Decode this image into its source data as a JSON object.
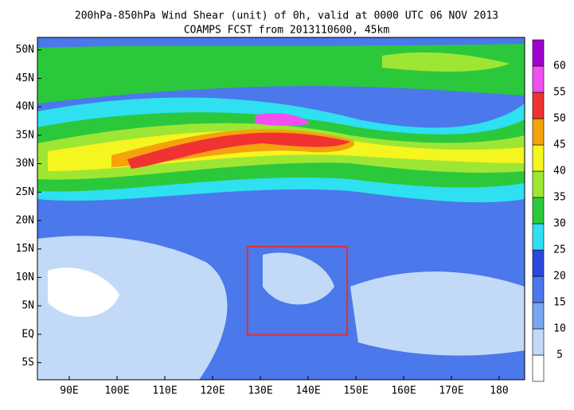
{
  "chart_data": {
    "type": "map",
    "title": "200hPa-850hPa Wind Shear (unit) of 0h, valid at 0000 UTC 06 NOV 2013",
    "subtitle": "COAMPS FCST from 2013110600, 45km",
    "xlim": [
      83.33,
      185.33
    ],
    "ylim": [
      -8,
      52.2
    ],
    "xticks": [
      {
        "value": 90,
        "label": "90E"
      },
      {
        "value": 100,
        "label": "100E"
      },
      {
        "value": 110,
        "label": "110E"
      },
      {
        "value": 120,
        "label": "120E"
      },
      {
        "value": 130,
        "label": "130E"
      },
      {
        "value": 140,
        "label": "140E"
      },
      {
        "value": 150,
        "label": "150E"
      },
      {
        "value": 160,
        "label": "160E"
      },
      {
        "value": 170,
        "label": "170E"
      },
      {
        "value": 180,
        "label": "180"
      }
    ],
    "yticks": [
      {
        "value": -5,
        "label": "5S"
      },
      {
        "value": 0,
        "label": "EQ"
      },
      {
        "value": 5,
        "label": "5N"
      },
      {
        "value": 10,
        "label": "10N"
      },
      {
        "value": 15,
        "label": "15N"
      },
      {
        "value": 20,
        "label": "20N"
      },
      {
        "value": 25,
        "label": "25N"
      },
      {
        "value": 30,
        "label": "30N"
      },
      {
        "value": 35,
        "label": "35N"
      },
      {
        "value": 40,
        "label": "40N"
      },
      {
        "value": 45,
        "label": "45N"
      },
      {
        "value": 50,
        "label": "50N"
      }
    ],
    "colorbar": {
      "range": [
        0,
        65
      ],
      "ticks": [
        5,
        10,
        15,
        20,
        25,
        30,
        35,
        40,
        45,
        50,
        55,
        60
      ],
      "colors": [
        "#ffffff",
        "#c2daf8",
        "#7aa6f2",
        "#4b78ea",
        "#2a48e0",
        "#2ee0f0",
        "#2cc83c",
        "#9ee634",
        "#f5f520",
        "#f5a20c",
        "#f03232",
        "#f050f0",
        "#a000d0"
      ]
    },
    "box": {
      "color": "#e03030",
      "lon": [
        127.3,
        148.2
      ],
      "lat": [
        -0.1,
        15.4
      ]
    }
  }
}
